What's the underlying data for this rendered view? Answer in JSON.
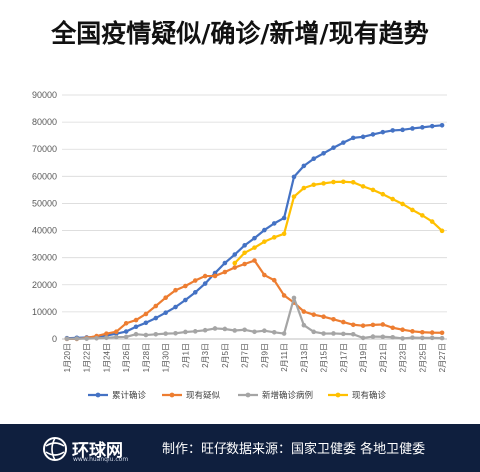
{
  "title": "全国疫情疑似/确诊/新增/现有趋势",
  "footer": {
    "logo_name": "环球网",
    "logo_url": "www.huanqiu.com",
    "credit": "制作：旺仔",
    "source": "数据来源：国家卫健委 各地卫健委",
    "background_color": "#0f1f3e"
  },
  "chart_data": {
    "type": "line",
    "title": "全国疫情疑似/确诊/新增/现有趋势",
    "xlabel": "",
    "ylabel": "",
    "ylim": [
      0,
      90000
    ],
    "yticks": [
      0,
      10000,
      20000,
      30000,
      40000,
      50000,
      60000,
      70000,
      80000,
      90000
    ],
    "ytick_labels": [
      "0",
      "10000",
      "20000",
      "30000",
      "40000",
      "50000",
      "60000",
      "70000",
      "80000",
      "90000"
    ],
    "grid": "horizontal",
    "legend_position": "bottom",
    "x": [
      "1月20日",
      "1月21日",
      "1月22日",
      "1月23日",
      "1月24日",
      "1月25日",
      "1月26日",
      "1月27日",
      "1月28日",
      "1月29日",
      "1月30日",
      "1月31日",
      "2月1日",
      "2月2日",
      "2月3日",
      "2月4日",
      "2月5日",
      "2月6日",
      "2月7日",
      "2月8日",
      "2月9日",
      "2月10日",
      "2月11日",
      "2月12日",
      "2月13日",
      "2月14日",
      "2月15日",
      "2月16日",
      "2月17日",
      "2月18日",
      "2月19日",
      "2月20日",
      "2月21日",
      "2月22日",
      "2月23日",
      "2月24日",
      "2月25日",
      "2月26日",
      "2月27日"
    ],
    "xtick_labels": [
      "1月20日",
      "1月22日",
      "1月24日",
      "1月26日",
      "1月28日",
      "1月30日",
      "2月1日",
      "2月3日",
      "2月5日",
      "2月7日",
      "2月9日",
      "2月11日",
      "2月13日",
      "2月15日",
      "2月17日",
      "2月19日",
      "2月21日",
      "2月23日",
      "2月25日",
      "2月27日"
    ],
    "series": [
      {
        "name": "累计确诊",
        "color": "#4472c4",
        "values": [
          291,
          440,
          571,
          830,
          1287,
          1975,
          2744,
          4515,
          5974,
          7711,
          9692,
          11791,
          14380,
          17205,
          20438,
          24324,
          28018,
          31161,
          34546,
          37198,
          40171,
          42638,
          44653,
          59804,
          63851,
          66492,
          68500,
          70548,
          72436,
          74185,
          74576,
          75465,
          76288,
          76936,
          77150,
          77658,
          78064,
          78497,
          78824
        ]
      },
      {
        "name": "现有疑似",
        "color": "#ed7d31",
        "values": [
          54,
          37,
          393,
          1072,
          1965,
          2684,
          5794,
          6973,
          9239,
          12167,
          15238,
          17988,
          19544,
          21558,
          23214,
          23260,
          24702,
          26359,
          27657,
          28942,
          23589,
          21675,
          16067,
          13435,
          10109,
          8969,
          8228,
          7264,
          6242,
          5248,
          4922,
          5206,
          5365,
          4148,
          3434,
          2824,
          2491,
          2358,
          2308
        ]
      },
      {
        "name": "新增确诊病例",
        "color": "#a5a5a5",
        "values": [
          77,
          149,
          131,
          259,
          444,
          688,
          769,
          1771,
          1459,
          1737,
          1982,
          2102,
          2590,
          2829,
          3235,
          3887,
          3694,
          3143,
          3399,
          2656,
          3062,
          2478,
          2015,
          15152,
          5090,
          2641,
          2009,
          2048,
          1886,
          1749,
          394,
          889,
          823,
          648,
          214,
          508,
          406,
          433,
          327
        ]
      },
      {
        "name": "现有确诊",
        "color": "#ffc000",
        "values": [
          null,
          null,
          null,
          null,
          null,
          null,
          null,
          null,
          null,
          null,
          null,
          null,
          null,
          null,
          null,
          null,
          null,
          28000,
          31800,
          33700,
          35900,
          37500,
          38800,
          52500,
          55700,
          56900,
          57400,
          57900,
          58000,
          57800,
          56300,
          55000,
          53400,
          51600,
          49800,
          47600,
          45600,
          43300,
          39900
        ]
      }
    ]
  }
}
